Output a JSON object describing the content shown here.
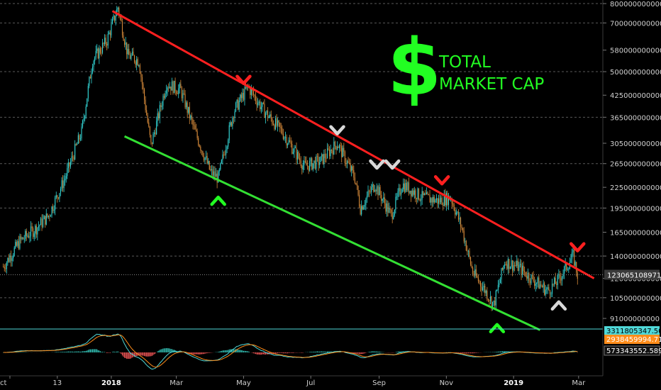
{
  "chart_data": {
    "type": "candlestick",
    "title_symbol": "$",
    "title_lines": [
      "TOTAL",
      "MARKET CAP"
    ],
    "x_ticks": [
      {
        "label": "ct",
        "bold": false,
        "date": "2017-10-01"
      },
      {
        "label": "13",
        "bold": false,
        "date": "2017-11-13"
      },
      {
        "label": "2018",
        "bold": true,
        "date": "2018-01-01"
      },
      {
        "label": "Mar",
        "bold": false,
        "date": "2018-03-01"
      },
      {
        "label": "May",
        "bold": false,
        "date": "2018-05-01"
      },
      {
        "label": "Jul",
        "bold": false,
        "date": "2018-07-01"
      },
      {
        "label": "Sep",
        "bold": false,
        "date": "2018-09-01"
      },
      {
        "label": "Nov",
        "bold": false,
        "date": "2018-11-01"
      },
      {
        "label": "2019",
        "bold": true,
        "date": "2019-01-01"
      },
      {
        "label": "Mar",
        "bold": false,
        "date": "2019-03-01"
      }
    ],
    "y_axis": {
      "scale": "log",
      "range": [
        85000000000,
        820000000000
      ],
      "ticks": [
        "800000000000",
        "700000000000",
        "580000000000",
        "500000000000",
        "425000000000",
        "365000000000",
        "305000000000",
        "265000000000",
        "225000000000",
        "195000000000",
        "165000000000",
        "140000000000",
        "120000000000",
        "105000000000",
        "91000000000"
      ],
      "tick_values": [
        800000000000.0,
        700000000000.0,
        580000000000.0,
        500000000000.0,
        425000000000.0,
        365000000000.0,
        305000000000.0,
        265000000000.0,
        225000000000.0,
        195000000000.0,
        165000000000.0,
        140000000000.0,
        120000000000.0,
        105000000000.0,
        91000000000.0
      ]
    },
    "last_price": "123065108971",
    "last_price_value": 123065108971,
    "price_series": [
      {
        "date": "2017-09-25",
        "value": 130000000000.0
      },
      {
        "date": "2017-10-10",
        "value": 155000000000.0
      },
      {
        "date": "2017-10-25",
        "value": 170000000000.0
      },
      {
        "date": "2017-11-05",
        "value": 185000000000.0
      },
      {
        "date": "2017-11-20",
        "value": 240000000000.0
      },
      {
        "date": "2017-12-05",
        "value": 330000000000.0
      },
      {
        "date": "2017-12-15",
        "value": 540000000000.0
      },
      {
        "date": "2017-12-28",
        "value": 620000000000.0
      },
      {
        "date": "2018-01-07",
        "value": 780000000000.0
      },
      {
        "date": "2018-01-16",
        "value": 560000000000.0
      },
      {
        "date": "2018-01-26",
        "value": 540000000000.0
      },
      {
        "date": "2018-02-06",
        "value": 300000000000.0
      },
      {
        "date": "2018-02-20",
        "value": 460000000000.0
      },
      {
        "date": "2018-03-05",
        "value": 440000000000.0
      },
      {
        "date": "2018-03-18",
        "value": 330000000000.0
      },
      {
        "date": "2018-04-01",
        "value": 250000000000.0
      },
      {
        "date": "2018-04-08",
        "value": 240000000000.0
      },
      {
        "date": "2018-04-22",
        "value": 380000000000.0
      },
      {
        "date": "2018-05-05",
        "value": 450000000000.0
      },
      {
        "date": "2018-05-20",
        "value": 380000000000.0
      },
      {
        "date": "2018-06-05",
        "value": 330000000000.0
      },
      {
        "date": "2018-06-25",
        "value": 260000000000.0
      },
      {
        "date": "2018-07-10",
        "value": 270000000000.0
      },
      {
        "date": "2018-07-25",
        "value": 305000000000.0
      },
      {
        "date": "2018-08-10",
        "value": 240000000000.0
      },
      {
        "date": "2018-08-15",
        "value": 195000000000.0
      },
      {
        "date": "2018-08-28",
        "value": 230000000000.0
      },
      {
        "date": "2018-09-12",
        "value": 185000000000.0
      },
      {
        "date": "2018-09-22",
        "value": 230000000000.0
      },
      {
        "date": "2018-10-10",
        "value": 210000000000.0
      },
      {
        "date": "2018-10-25",
        "value": 205000000000.0
      },
      {
        "date": "2018-11-05",
        "value": 210000000000.0
      },
      {
        "date": "2018-11-15",
        "value": 170000000000.0
      },
      {
        "date": "2018-11-25",
        "value": 125000000000.0
      },
      {
        "date": "2018-12-05",
        "value": 112000000000.0
      },
      {
        "date": "2018-12-14",
        "value": 100000000000.0
      },
      {
        "date": "2018-12-24",
        "value": 135000000000.0
      },
      {
        "date": "2019-01-05",
        "value": 130000000000.0
      },
      {
        "date": "2019-01-20",
        "value": 118000000000.0
      },
      {
        "date": "2019-02-01",
        "value": 110000000000.0
      },
      {
        "date": "2019-02-10",
        "value": 118000000000.0
      },
      {
        "date": "2019-02-24",
        "value": 140000000000.0
      },
      {
        "date": "2019-02-28",
        "value": 123000000000.0
      }
    ],
    "trendlines": [
      {
        "name": "resistance",
        "color": "#ff2020",
        "from": {
          "date": "2018-01-02",
          "value": 760000000000.0
        },
        "to": {
          "date": "2019-03-15",
          "value": 120000000000.0
        }
      },
      {
        "name": "support",
        "color": "#33e033",
        "from": {
          "date": "2018-01-13",
          "value": 320000000000.0
        },
        "to": {
          "date": "2019-01-25",
          "value": 84000000000.0
        }
      }
    ],
    "markers": [
      {
        "kind": "down",
        "color": "#ff2020",
        "date": "2018-05-01",
        "value": 470000000000.0
      },
      {
        "kind": "down",
        "color": "#d8d8d8",
        "date": "2018-07-25",
        "value": 332000000000.0
      },
      {
        "kind": "down",
        "color": "#d8d8d8",
        "date": "2018-08-30",
        "value": 262000000000.0
      },
      {
        "kind": "down",
        "color": "#d8d8d8",
        "date": "2018-09-13",
        "value": 262000000000.0
      },
      {
        "kind": "down",
        "color": "#ff2020",
        "date": "2018-10-28",
        "value": 235000000000.0
      },
      {
        "kind": "down",
        "color": "#ff2020",
        "date": "2019-02-28",
        "value": 148000000000.0
      },
      {
        "kind": "up",
        "color": "#22ff22",
        "date": "2018-04-08",
        "value": 206000000000.0
      },
      {
        "kind": "up",
        "color": "#22ff22",
        "date": "2018-12-17",
        "value": 85500000000.0
      },
      {
        "kind": "up",
        "color": "#d8d8d8",
        "date": "2019-02-11",
        "value": 100000000000.0
      }
    ],
    "indicator": {
      "badges": [
        {
          "text": "3311805347.5008",
          "color": "#4fd8d8",
          "text_color": "#000000"
        },
        {
          "text": "2938459994.7111",
          "color": "#ff8c1a",
          "text_color": "#ffffff"
        },
        {
          "text": "573343552.5897",
          "color": "#111111",
          "text_color": "#ffffff"
        }
      ]
    },
    "colors": {
      "up": "#33d6d6",
      "down": "#d68a3a",
      "grid": "#5a5a5a"
    }
  }
}
